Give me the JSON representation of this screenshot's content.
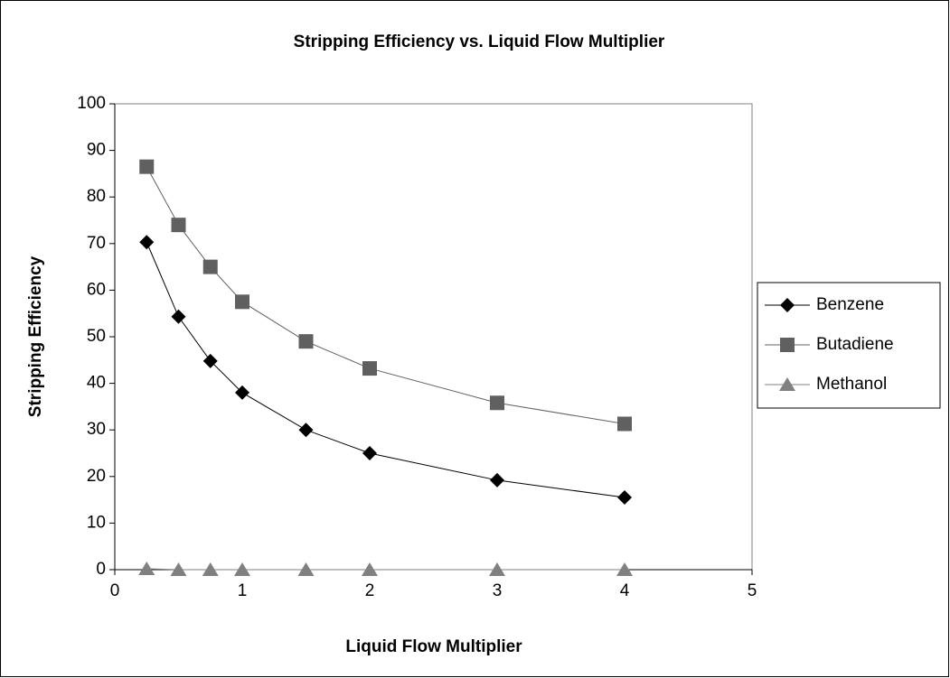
{
  "chart_data": {
    "type": "line",
    "title": "Stripping Efficiency vs. Liquid Flow Multiplier",
    "x_label": "Liquid Flow Multiplier",
    "y_label": "Stripping Efficiency",
    "x": [
      0.25,
      0.5,
      0.75,
      1,
      1.5,
      2,
      3,
      4
    ],
    "series": [
      {
        "name": "Benzene",
        "color": "#000000",
        "marker": "diamond",
        "values": [
          70.3,
          54.3,
          44.8,
          38,
          30,
          25,
          19.2,
          15.5
        ]
      },
      {
        "name": "Butadiene",
        "color": "#606060",
        "marker": "square",
        "values": [
          86.5,
          74,
          65,
          57.5,
          49,
          43.2,
          35.8,
          31.3
        ]
      },
      {
        "name": "Methanol",
        "color": "#808080",
        "marker": "triangle",
        "values": [
          0.2,
          0,
          0,
          0,
          0,
          0,
          0,
          0
        ]
      }
    ],
    "xlim": [
      0,
      5
    ],
    "xticks": [
      0,
      1,
      2,
      3,
      4,
      5
    ],
    "ylim": [
      0,
      100
    ],
    "yticks": [
      0,
      10,
      20,
      30,
      40,
      50,
      60,
      70,
      80,
      90,
      100
    ],
    "legend": "right"
  }
}
